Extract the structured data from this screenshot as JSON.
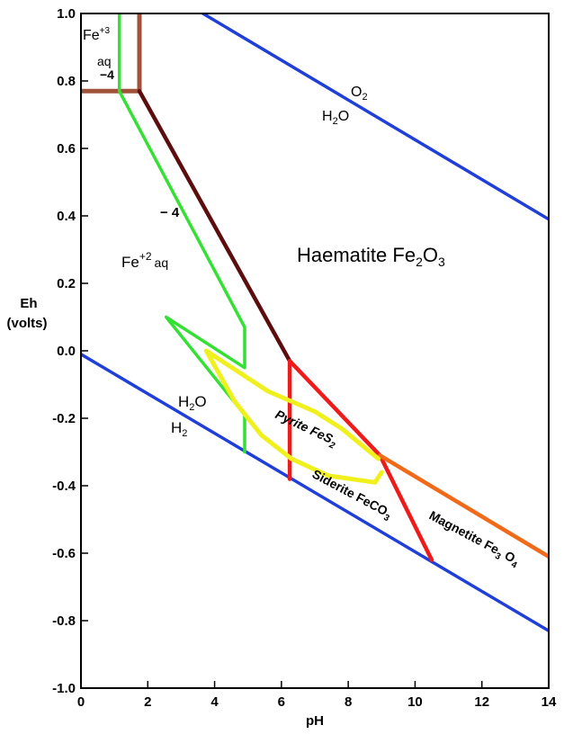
{
  "chart_data": {
    "type": "line",
    "title": "",
    "xlabel": "pH",
    "ylabel": "Eh (volts)",
    "xlim": [
      0,
      14
    ],
    "ylim": [
      -1.0,
      1.0
    ],
    "x_ticks": [
      "0",
      "2",
      "4",
      "6",
      "8",
      "10",
      "12",
      "14"
    ],
    "y_ticks": [
      "1.0",
      "0.8",
      "0.6",
      "0.4",
      "0.2",
      "0.0",
      "-0.2",
      "-0.4",
      "-0.6",
      "-0.8",
      "-1.0"
    ],
    "series": [
      {
        "color": "#1f3fd8",
        "points": [
          [
            3.65,
            1.0
          ],
          [
            14,
            0.39
          ]
        ]
      },
      {
        "color": "#1f3fd8",
        "points": [
          [
            0,
            -0.01
          ],
          [
            14,
            -0.83
          ]
        ]
      },
      {
        "color": "#a0523a",
        "points": [
          [
            0,
            0.77
          ],
          [
            1.75,
            0.77
          ],
          [
            1.75,
            1.0
          ]
        ]
      },
      {
        "color": "#5c0d0d",
        "points": [
          [
            1.75,
            0.77
          ],
          [
            6.25,
            -0.03
          ]
        ]
      },
      {
        "color": "#33e033",
        "points": [
          [
            1.15,
            1.0
          ],
          [
            1.15,
            0.77
          ],
          [
            4.9,
            0.07
          ],
          [
            4.9,
            -0.05
          ],
          [
            2.55,
            0.1
          ],
          [
            4.9,
            -0.19
          ],
          [
            4.9,
            -0.3
          ]
        ]
      },
      {
        "color": "#ef1b1b",
        "points": [
          [
            6.25,
            -0.03
          ],
          [
            6.25,
            -0.38
          ]
        ]
      },
      {
        "color": "#ef1b1b",
        "points": [
          [
            6.25,
            -0.03
          ],
          [
            8.95,
            -0.31
          ],
          [
            10.5,
            -0.62
          ]
        ]
      },
      {
        "color": "#f06a1a",
        "points": [
          [
            8.95,
            -0.31
          ],
          [
            14,
            -0.61
          ]
        ]
      },
      {
        "color": "#f0f01e",
        "points": [
          [
            3.75,
            0.0
          ],
          [
            5.6,
            -0.12
          ],
          [
            7.0,
            -0.18
          ],
          [
            7.8,
            -0.23
          ],
          [
            8.9,
            -0.32
          ]
        ]
      },
      {
        "color": "#f0f01e",
        "points": [
          [
            3.75,
            0.0
          ],
          [
            4.6,
            -0.15
          ],
          [
            5.4,
            -0.25
          ],
          [
            6.3,
            -0.32
          ],
          [
            7.4,
            -0.37
          ],
          [
            8.8,
            -0.39
          ],
          [
            9.0,
            -0.36
          ]
        ]
      }
    ]
  },
  "labels": {
    "o2": "O2",
    "h2o_top": "H2O",
    "h2o_bottom": "H2O",
    "h2": "H2",
    "fe3_base": "Fe",
    "fe3_sup": "+3",
    "fe3_aq": "aq",
    "minus4_top": "−4",
    "minus4_mid": "− 4",
    "fe2_base": "Fe",
    "fe2_sup": "+2",
    "fe2_aq": "aq",
    "haematite": "Haematite  Fe",
    "haematite_sub2": "2",
    "haematite_o": "O",
    "haematite_sub3": "3",
    "pyrite": "Pyrite FeS",
    "pyrite_sub": "2",
    "siderite": "Siderite FeCO",
    "siderite_sub": "3",
    "magnetite": "Magnetite Fe",
    "magnetite_sub3": "3",
    "magnetite_o": " O",
    "magnetite_sub4": "4"
  }
}
